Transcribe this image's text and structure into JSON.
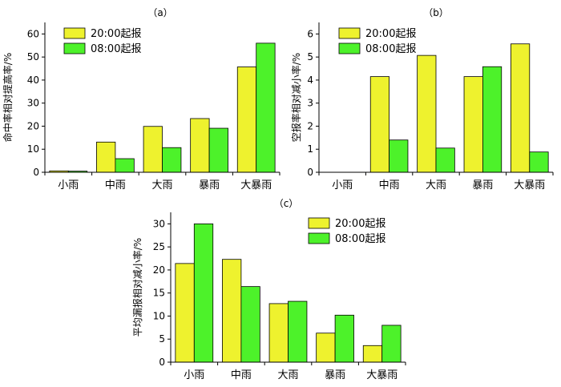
{
  "chart_data": [
    {
      "type": "bar",
      "title": "（a）",
      "ylabel": "命中率相对提高率/%",
      "categories": [
        "小雨",
        "中雨",
        "大雨",
        "暴雨",
        "大暴雨"
      ],
      "series": [
        {
          "name": "20:00起报",
          "values": [
            0.6,
            13.1,
            19.9,
            23.3,
            45.7
          ]
        },
        {
          "name": "08:00起报",
          "values": [
            0.5,
            5.9,
            10.7,
            19.1,
            56.0
          ]
        }
      ],
      "ylim": [
        0,
        65
      ],
      "yticks": [
        "0",
        "10",
        "20",
        "30",
        "40",
        "50",
        "60"
      ],
      "legend": "top-left",
      "grid": false
    },
    {
      "type": "bar",
      "title": "（b）",
      "ylabel": "空报率相对减小率/%",
      "categories": [
        "小雨",
        "中雨",
        "大雨",
        "暴雨",
        "大暴雨"
      ],
      "series": [
        {
          "name": "20:00起报",
          "values": [
            0,
            4.15,
            5.07,
            4.15,
            5.57
          ]
        },
        {
          "name": "08:00起报",
          "values": [
            0,
            1.4,
            1.05,
            4.58,
            0.88
          ]
        }
      ],
      "ylim": [
        0,
        6.5
      ],
      "yticks": [
        "0",
        "1",
        "2",
        "3",
        "4",
        "5",
        "6"
      ],
      "legend": "top-left",
      "grid": false
    },
    {
      "type": "bar",
      "title": "（c）",
      "ylabel": "平均漏报相对减小率/%",
      "categories": [
        "小雨",
        "中雨",
        "大雨",
        "暴雨",
        "大暴雨"
      ],
      "series": [
        {
          "name": "20:00起报",
          "values": [
            21.4,
            22.3,
            12.7,
            6.3,
            3.6
          ]
        },
        {
          "name": "08:00起报",
          "values": [
            30.0,
            16.4,
            13.2,
            10.2,
            8.0
          ]
        }
      ],
      "ylim": [
        0,
        32.5
      ],
      "yticks": [
        "0",
        "5",
        "10",
        "15",
        "20",
        "25",
        "30"
      ],
      "legend": "top-right",
      "grid": false
    }
  ],
  "colors": {
    "series_20": "#eef22e",
    "series_08": "#4df22a",
    "axis": "#000000"
  }
}
